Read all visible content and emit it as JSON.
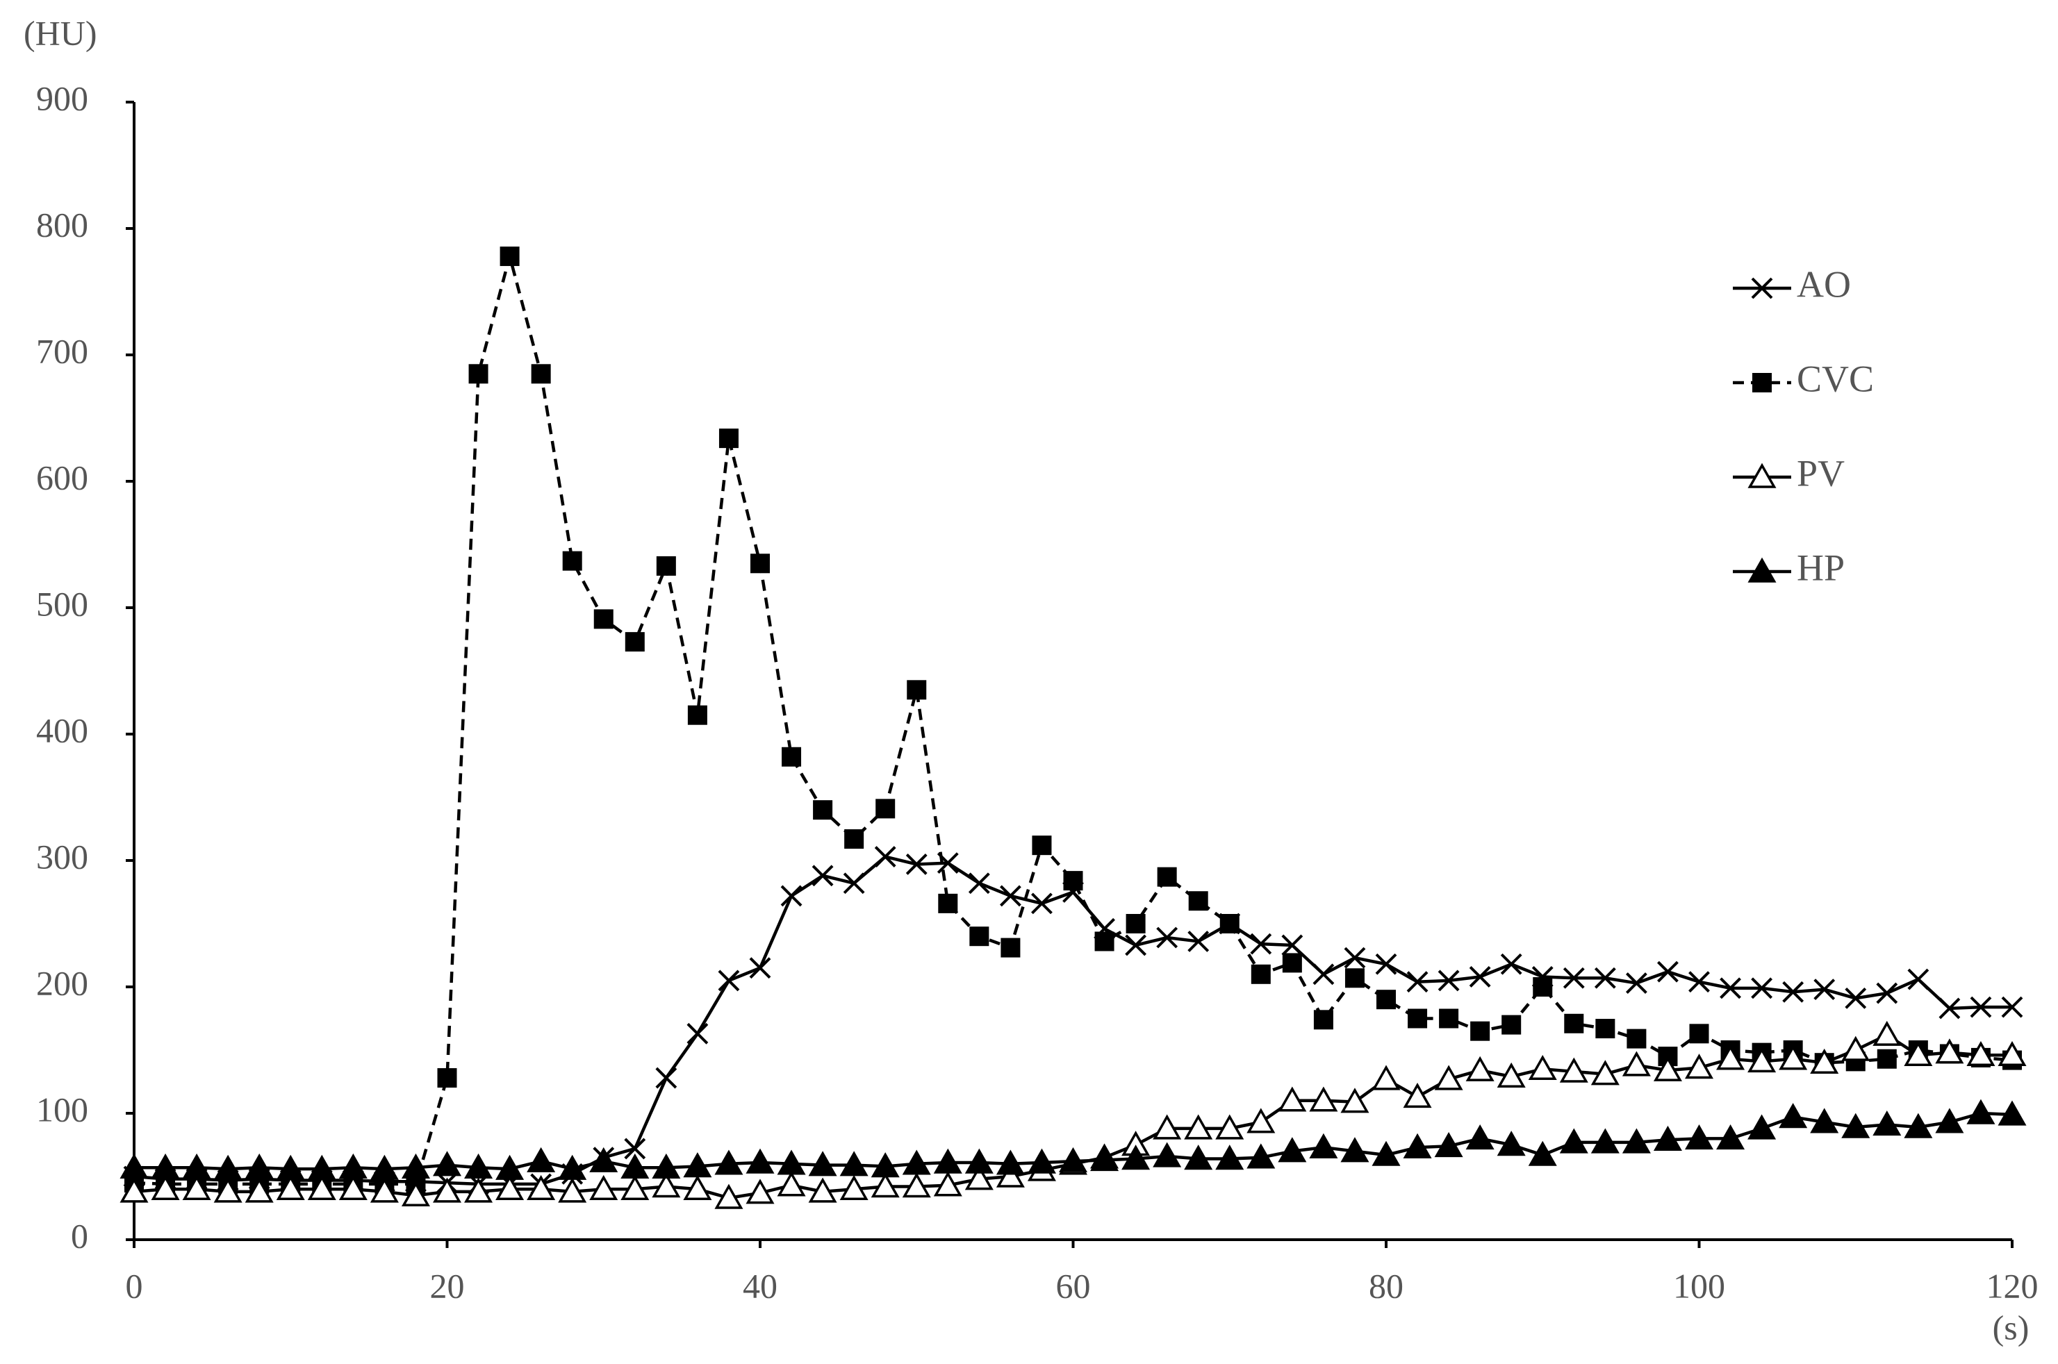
{
  "chart_data": {
    "type": "line",
    "y_label": "(HU)",
    "x_label": "(s)",
    "x": [
      0,
      2,
      4,
      6,
      8,
      10,
      12,
      14,
      16,
      18,
      20,
      22,
      24,
      26,
      28,
      30,
      32,
      34,
      36,
      38,
      40,
      42,
      44,
      46,
      48,
      50,
      52,
      54,
      56,
      58,
      60,
      62,
      64,
      66,
      68,
      70,
      72,
      74,
      76,
      78,
      80,
      82,
      84,
      86,
      88,
      90,
      92,
      94,
      96,
      98,
      100,
      102,
      104,
      106,
      108,
      110,
      112,
      114,
      116,
      118,
      120
    ],
    "xlim": [
      0,
      120
    ],
    "xticks": [
      0,
      20,
      40,
      60,
      80,
      100,
      120
    ],
    "ylim": [
      0,
      900
    ],
    "yticks": [
      0,
      100,
      200,
      300,
      400,
      500,
      600,
      700,
      800,
      900
    ],
    "grid": false,
    "legend": "upper right",
    "series": [
      {
        "name": "AO",
        "color": "#000000",
        "marker": "x",
        "dashed": false,
        "values": [
          50,
          48,
          48,
          47,
          48,
          47,
          47,
          47,
          46,
          46,
          45,
          44,
          44,
          44,
          52,
          65,
          72,
          128,
          163,
          205,
          215,
          272,
          288,
          282,
          303,
          297,
          298,
          282,
          272,
          266,
          275,
          246,
          233,
          239,
          236,
          250,
          234,
          233,
          210,
          223,
          218,
          204,
          205,
          208,
          218,
          208,
          207,
          207,
          203,
          212,
          204,
          199,
          199,
          196,
          198,
          191,
          195,
          206,
          183,
          184,
          184
        ]
      },
      {
        "name": "CVC",
        "color": "#000000",
        "marker": "square",
        "dashed": true,
        "values": [
          45,
          44,
          44,
          44,
          44,
          44,
          44,
          44,
          44,
          44,
          128,
          685,
          778,
          685,
          537,
          491,
          473,
          533,
          415,
          634,
          535,
          382,
          340,
          317,
          341,
          435,
          266,
          240,
          231,
          312,
          284,
          236,
          250,
          287,
          268,
          250,
          210,
          219,
          174,
          207,
          190,
          175,
          175,
          165,
          170,
          200,
          171,
          167,
          159,
          145,
          163,
          150,
          148,
          150,
          140,
          141,
          143,
          150,
          147,
          144,
          142
        ]
      },
      {
        "name": "PV",
        "color": "#000000",
        "marker": "triangle-open",
        "dashed": false,
        "values": [
          38,
          40,
          40,
          38,
          38,
          40,
          40,
          40,
          38,
          35,
          38,
          38,
          40,
          40,
          38,
          40,
          40,
          42,
          40,
          33,
          37,
          43,
          38,
          40,
          42,
          42,
          43,
          48,
          50,
          55,
          60,
          65,
          75,
          88,
          88,
          88,
          93,
          110,
          110,
          109,
          127,
          113,
          127,
          134,
          129,
          135,
          133,
          131,
          138,
          134,
          136,
          143,
          141,
          143,
          140,
          150,
          162,
          146,
          148,
          146,
          146
        ]
      },
      {
        "name": "HP",
        "color": "#000000",
        "marker": "triangle",
        "dashed": false,
        "values": [
          57,
          57,
          57,
          56,
          57,
          56,
          56,
          57,
          56,
          57,
          59,
          57,
          56,
          62,
          56,
          62,
          57,
          57,
          58,
          60,
          61,
          60,
          59,
          59,
          58,
          60,
          61,
          61,
          60,
          61,
          62,
          63,
          64,
          66,
          64,
          64,
          65,
          70,
          73,
          70,
          67,
          73,
          74,
          80,
          75,
          67,
          77,
          77,
          77,
          79,
          80,
          80,
          88,
          97,
          93,
          89,
          91,
          89,
          93,
          100,
          99
        ]
      }
    ]
  }
}
